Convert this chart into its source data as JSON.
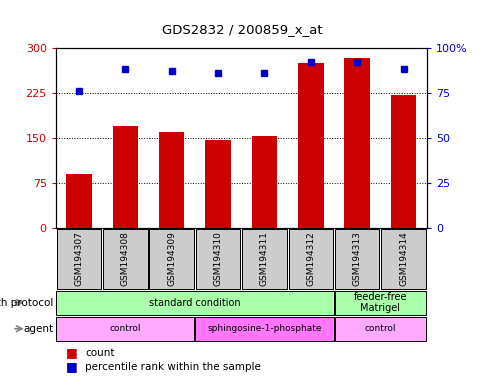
{
  "title": "GDS2832 / 200859_x_at",
  "samples": [
    "GSM194307",
    "GSM194308",
    "GSM194309",
    "GSM194310",
    "GSM194311",
    "GSM194312",
    "GSM194313",
    "GSM194314"
  ],
  "counts": [
    90,
    170,
    160,
    147,
    153,
    275,
    283,
    222
  ],
  "percentiles": [
    76,
    88,
    87,
    86,
    86,
    92,
    92,
    88
  ],
  "bar_color": "#CC0000",
  "dot_color": "#0000CC",
  "left_ylim": [
    0,
    300
  ],
  "right_ylim": [
    0,
    100
  ],
  "left_yticks": [
    0,
    75,
    150,
    225,
    300
  ],
  "right_yticks": [
    0,
    25,
    50,
    75,
    100
  ],
  "right_yticklabels": [
    "0",
    "25",
    "50",
    "75",
    "100%"
  ],
  "hlines": [
    75,
    150,
    225
  ],
  "growth_protocol_groups": [
    {
      "label": "standard condition",
      "start": 0,
      "end": 6,
      "color": "#AAFFAA"
    },
    {
      "label": "feeder-free\nMatrigel",
      "start": 6,
      "end": 8,
      "color": "#AAFFAA"
    }
  ],
  "agent_groups": [
    {
      "label": "control",
      "start": 0,
      "end": 3,
      "color": "#FFAAFF"
    },
    {
      "label": "sphingosine-1-phosphate",
      "start": 3,
      "end": 6,
      "color": "#FF77FF"
    },
    {
      "label": "control",
      "start": 6,
      "end": 8,
      "color": "#FFAAFF"
    }
  ],
  "legend_count_label": "count",
  "legend_percentile_label": "percentile rank within the sample",
  "bar_color_left": "#CC0000",
  "dot_color_blue": "#0000CC",
  "row_label_growth": "growth protocol",
  "row_label_agent": "agent",
  "sample_box_color": "#CCCCCC"
}
